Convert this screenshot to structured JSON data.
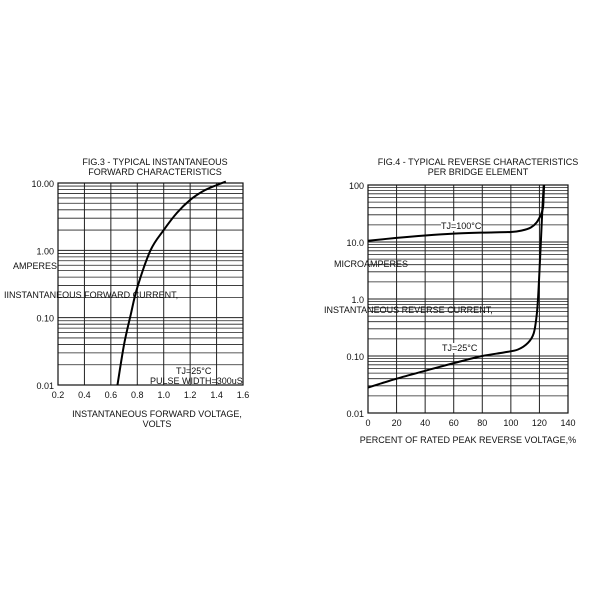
{
  "chart_data": [
    {
      "type": "line",
      "title": "FIG.3 - TYPICAL INSTANTANEOUS",
      "subtitle": "FORWARD CHARACTERISTICS",
      "xlabel": "INSTANTANEOUS FORWARD VOLTAGE,",
      "xlabel2": "VOLTS",
      "ylabel": "IINSTANTANEOUS FORWARD CURRENT,",
      "ylabel2": "AMPERES",
      "xlim": [
        0.2,
        1.6
      ],
      "ylim": [
        0.01,
        10
      ],
      "yscale": "log",
      "grid": true,
      "xticks": [
        "0.2",
        "0.4",
        "0.6",
        "0.8",
        "1.0",
        "1.2",
        "1.4",
        "1.6"
      ],
      "yticks": [
        "0.01",
        "0.10",
        "1.00",
        "10.00"
      ],
      "annotations": [
        "TJ=25°C",
        "PULSE WIDTH=300uS"
      ],
      "series": [
        {
          "x": [
            0.65,
            0.7,
            0.75,
            0.8,
            0.9,
            1.0,
            1.1,
            1.2,
            1.3,
            1.4,
            1.47
          ],
          "y": [
            0.01,
            0.04,
            0.11,
            0.28,
            1.0,
            2.0,
            3.6,
            5.6,
            7.6,
            9.3,
            10.5
          ]
        }
      ]
    },
    {
      "type": "line",
      "title": "FIG.4 - TYPICAL REVERSE CHARACTERISTICS",
      "subtitle": "PER BRIDGE ELEMENT",
      "xlabel": "PERCENT OF RATED PEAK REVERSE VOLTAGE,%",
      "ylabel": "INSTANTANEOUS REVERSE CURRENT,",
      "ylabel2": "MICROAMPERES",
      "xlim": [
        0,
        140
      ],
      "ylim": [
        0.01,
        100
      ],
      "yscale": "log",
      "grid": true,
      "xticks": [
        "0",
        "20",
        "40",
        "60",
        "80",
        "100",
        "120",
        "140"
      ],
      "yticks": [
        "0.01",
        "0.10",
        "1.0",
        "10.0",
        "100"
      ],
      "series": [
        {
          "name": "TJ=100°C",
          "x": [
            0,
            20,
            40,
            60,
            80,
            100,
            108,
            114,
            118,
            121,
            122.5,
            123,
            123.3
          ],
          "y": [
            10.5,
            11.8,
            13,
            14,
            14.6,
            15,
            16,
            18,
            22,
            30,
            40,
            70,
            100
          ]
        },
        {
          "name": "TJ=25°C",
          "x": [
            0,
            20,
            40,
            60,
            80,
            95,
            105,
            112,
            116,
            118,
            119,
            120,
            121,
            122,
            123
          ],
          "y": [
            0.028,
            0.04,
            0.055,
            0.075,
            0.1,
            0.115,
            0.13,
            0.17,
            0.25,
            0.5,
            1,
            3,
            10,
            35,
            100
          ]
        }
      ]
    }
  ]
}
